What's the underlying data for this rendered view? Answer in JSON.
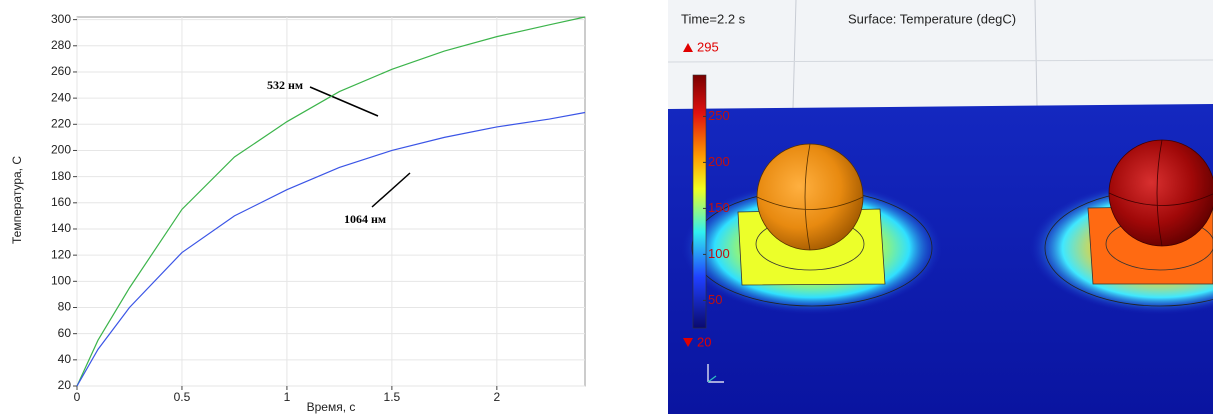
{
  "chart_data": [
    {
      "type": "line",
      "xlabel": "Время, с",
      "ylabel": "Температура, С",
      "x": [
        0,
        0.1,
        0.25,
        0.5,
        0.75,
        1,
        1.25,
        1.5,
        1.75,
        2,
        2.25,
        2.42
      ],
      "series": [
        {
          "name": "532 нм",
          "color": "#3cb44b",
          "values": [
            20,
            55,
            95,
            155,
            195,
            222,
            245,
            262,
            276,
            287,
            296,
            302
          ]
        },
        {
          "name": "1064 нм",
          "color": "#3b55e6",
          "values": [
            20,
            48,
            80,
            122,
            150,
            170,
            187,
            200,
            210,
            218,
            224,
            229
          ]
        }
      ],
      "xlim": [
        0,
        2.42
      ],
      "ylim": [
        20,
        302
      ],
      "xticks": [
        0,
        0.5,
        1,
        1.5,
        2
      ],
      "yticks": [
        20,
        40,
        60,
        80,
        100,
        120,
        140,
        160,
        180,
        200,
        220,
        240,
        260,
        280,
        300
      ],
      "grid": true
    },
    {
      "type": "surface",
      "subtitle": "Time=2.2 s",
      "title": "Surface: Temperature (degC)",
      "max": 295,
      "min": 20,
      "colorlim": [
        20,
        295
      ],
      "colorbar_ticks": [
        50,
        100,
        150,
        200,
        250
      ]
    }
  ]
}
